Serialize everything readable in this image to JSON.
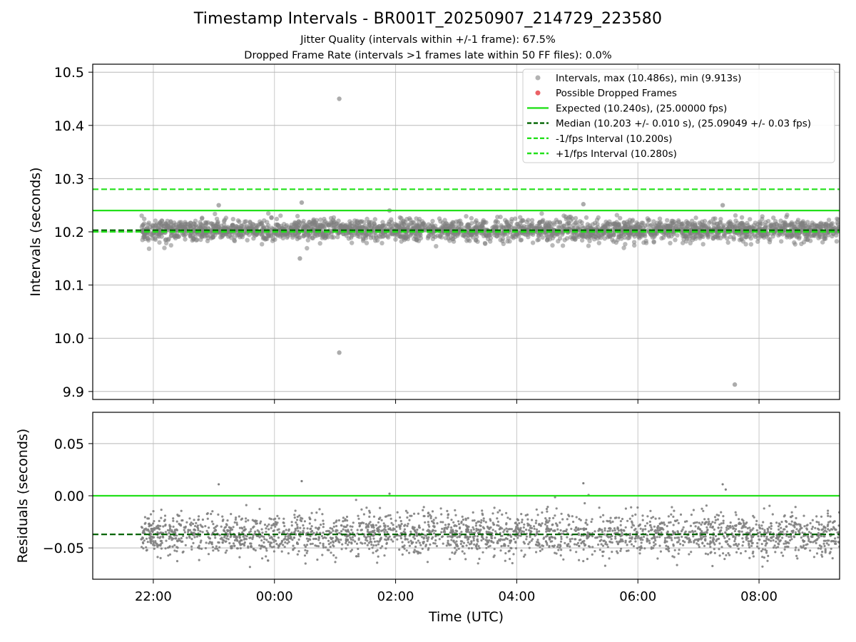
{
  "header": {
    "title": "Timestamp Intervals - BR001T_20250907_214729_223580",
    "subtitle_1": "Jitter Quality (intervals within +/-1 frame): 67.5%",
    "subtitle_2": "Dropped Frame Rate (intervals >1 frames late within 50 FF files): 0.0%"
  },
  "chart_data": [
    {
      "panel": "top",
      "type": "scatter",
      "xlabel": "",
      "ylabel": "Intervals (seconds)",
      "x_unit": "hours since 00:00 UTC",
      "xlim": [
        -3.0,
        9.33
      ],
      "ylim": [
        9.885,
        10.515
      ],
      "y_ticks": [
        9.9,
        10.0,
        10.1,
        10.2,
        10.3,
        10.4,
        10.5
      ],
      "y_tick_labels": [
        "9.9",
        "10.0",
        "10.1",
        "10.2",
        "10.3",
        "10.4",
        "10.5"
      ],
      "x_ticks": [
        -2,
        0,
        2,
        4,
        6,
        8
      ],
      "x_tick_labels": [
        "22:00",
        "00:00",
        "02:00",
        "04:00",
        "06:00",
        "08:00"
      ],
      "grid": true,
      "legend_position": "top-right",
      "colors": {
        "points": "#808080",
        "dropped": "#e8474b",
        "expected": "#22e01a",
        "median": "#006400",
        "fps_interval": "#22e01a"
      },
      "series": [
        {
          "name": "Intervals, max (10.486s), min (9.913s)",
          "kind": "points",
          "x_start": -2.2,
          "x_end": 9.33,
          "center": 10.203,
          "spread": 0.01,
          "outliers": [
            [
              1.07,
              10.45
            ],
            [
              1.07,
              9.973
            ],
            [
              7.6,
              9.913
            ],
            [
              0.45,
              10.255
            ],
            [
              -0.92,
              10.25
            ],
            [
              5.1,
              10.252
            ],
            [
              7.4,
              10.25
            ],
            [
              0.42,
              10.15
            ],
            [
              1.9,
              10.24
            ]
          ]
        },
        {
          "name": "Possible Dropped Frames",
          "kind": "points",
          "values": []
        },
        {
          "name": "Expected (10.240s), (25.00000 fps)",
          "kind": "hline",
          "y": 10.24,
          "style": "solid"
        },
        {
          "name": "Median (10.203 +/- 0.010 s), (25.09049 +/- 0.03 fps)",
          "kind": "hline",
          "y": 10.203,
          "style": "dashed"
        },
        {
          "name": "-1/fps Interval (10.200s)",
          "kind": "hline",
          "y": 10.2,
          "style": "dashed"
        },
        {
          "name": "+1/fps Interval (10.280s)",
          "kind": "hline",
          "y": 10.28,
          "style": "dashed"
        }
      ]
    },
    {
      "panel": "bottom",
      "type": "scatter",
      "xlabel": "Time (UTC)",
      "ylabel": "Residuals (seconds)",
      "x_unit": "hours since 00:00 UTC",
      "xlim": [
        -3.0,
        9.33
      ],
      "ylim": [
        -0.08,
        0.08
      ],
      "y_ticks": [
        -0.05,
        0.0,
        0.05
      ],
      "y_tick_labels": [
        "−0.05",
        "0.00",
        "0.05"
      ],
      "x_ticks": [
        -2,
        0,
        2,
        4,
        6,
        8
      ],
      "x_tick_labels": [
        "22:00",
        "00:00",
        "02:00",
        "04:00",
        "06:00",
        "08:00"
      ],
      "grid": true,
      "series": [
        {
          "kind": "points",
          "x_start": -2.2,
          "x_end": 9.33,
          "center": -0.037,
          "spread": 0.01,
          "outliers": [
            [
              0.45,
              0.014
            ],
            [
              -0.92,
              0.011
            ],
            [
              5.1,
              0.012
            ],
            [
              7.4,
              0.011
            ],
            [
              1.9,
              0.002
            ],
            [
              7.45,
              0.006
            ]
          ]
        },
        {
          "kind": "hline",
          "y": 0.0,
          "style": "solid"
        },
        {
          "kind": "hline",
          "y": -0.037,
          "style": "dashed"
        }
      ]
    }
  ]
}
